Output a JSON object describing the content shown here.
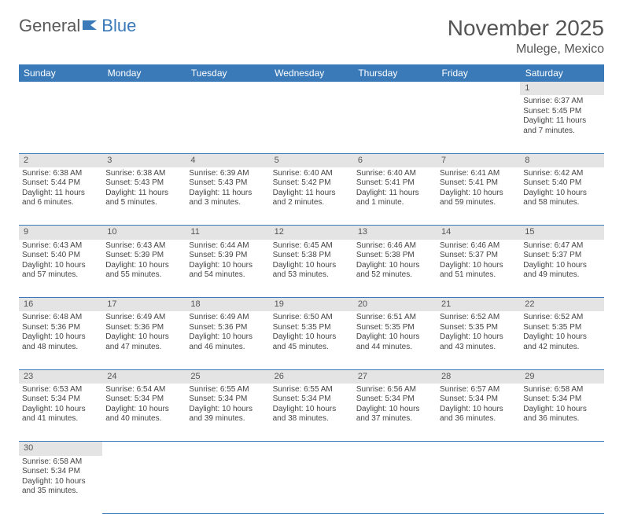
{
  "logo": {
    "text1": "General",
    "text2": "Blue"
  },
  "title": "November 2025",
  "location": "Mulege, Mexico",
  "colors": {
    "header_bg": "#3b7ab8",
    "header_text": "#ffffff",
    "daynum_bg": "#e4e4e4",
    "text": "#444444",
    "border": "#3b7ab8"
  },
  "weekdays": [
    "Sunday",
    "Monday",
    "Tuesday",
    "Wednesday",
    "Thursday",
    "Friday",
    "Saturday"
  ],
  "weeks": [
    [
      null,
      null,
      null,
      null,
      null,
      null,
      {
        "n": "1",
        "sr": "Sunrise: 6:37 AM",
        "ss": "Sunset: 5:45 PM",
        "dl": "Daylight: 11 hours and 7 minutes."
      }
    ],
    [
      {
        "n": "2",
        "sr": "Sunrise: 6:38 AM",
        "ss": "Sunset: 5:44 PM",
        "dl": "Daylight: 11 hours and 6 minutes."
      },
      {
        "n": "3",
        "sr": "Sunrise: 6:38 AM",
        "ss": "Sunset: 5:43 PM",
        "dl": "Daylight: 11 hours and 5 minutes."
      },
      {
        "n": "4",
        "sr": "Sunrise: 6:39 AM",
        "ss": "Sunset: 5:43 PM",
        "dl": "Daylight: 11 hours and 3 minutes."
      },
      {
        "n": "5",
        "sr": "Sunrise: 6:40 AM",
        "ss": "Sunset: 5:42 PM",
        "dl": "Daylight: 11 hours and 2 minutes."
      },
      {
        "n": "6",
        "sr": "Sunrise: 6:40 AM",
        "ss": "Sunset: 5:41 PM",
        "dl": "Daylight: 11 hours and 1 minute."
      },
      {
        "n": "7",
        "sr": "Sunrise: 6:41 AM",
        "ss": "Sunset: 5:41 PM",
        "dl": "Daylight: 10 hours and 59 minutes."
      },
      {
        "n": "8",
        "sr": "Sunrise: 6:42 AM",
        "ss": "Sunset: 5:40 PM",
        "dl": "Daylight: 10 hours and 58 minutes."
      }
    ],
    [
      {
        "n": "9",
        "sr": "Sunrise: 6:43 AM",
        "ss": "Sunset: 5:40 PM",
        "dl": "Daylight: 10 hours and 57 minutes."
      },
      {
        "n": "10",
        "sr": "Sunrise: 6:43 AM",
        "ss": "Sunset: 5:39 PM",
        "dl": "Daylight: 10 hours and 55 minutes."
      },
      {
        "n": "11",
        "sr": "Sunrise: 6:44 AM",
        "ss": "Sunset: 5:39 PM",
        "dl": "Daylight: 10 hours and 54 minutes."
      },
      {
        "n": "12",
        "sr": "Sunrise: 6:45 AM",
        "ss": "Sunset: 5:38 PM",
        "dl": "Daylight: 10 hours and 53 minutes."
      },
      {
        "n": "13",
        "sr": "Sunrise: 6:46 AM",
        "ss": "Sunset: 5:38 PM",
        "dl": "Daylight: 10 hours and 52 minutes."
      },
      {
        "n": "14",
        "sr": "Sunrise: 6:46 AM",
        "ss": "Sunset: 5:37 PM",
        "dl": "Daylight: 10 hours and 51 minutes."
      },
      {
        "n": "15",
        "sr": "Sunrise: 6:47 AM",
        "ss": "Sunset: 5:37 PM",
        "dl": "Daylight: 10 hours and 49 minutes."
      }
    ],
    [
      {
        "n": "16",
        "sr": "Sunrise: 6:48 AM",
        "ss": "Sunset: 5:36 PM",
        "dl": "Daylight: 10 hours and 48 minutes."
      },
      {
        "n": "17",
        "sr": "Sunrise: 6:49 AM",
        "ss": "Sunset: 5:36 PM",
        "dl": "Daylight: 10 hours and 47 minutes."
      },
      {
        "n": "18",
        "sr": "Sunrise: 6:49 AM",
        "ss": "Sunset: 5:36 PM",
        "dl": "Daylight: 10 hours and 46 minutes."
      },
      {
        "n": "19",
        "sr": "Sunrise: 6:50 AM",
        "ss": "Sunset: 5:35 PM",
        "dl": "Daylight: 10 hours and 45 minutes."
      },
      {
        "n": "20",
        "sr": "Sunrise: 6:51 AM",
        "ss": "Sunset: 5:35 PM",
        "dl": "Daylight: 10 hours and 44 minutes."
      },
      {
        "n": "21",
        "sr": "Sunrise: 6:52 AM",
        "ss": "Sunset: 5:35 PM",
        "dl": "Daylight: 10 hours and 43 minutes."
      },
      {
        "n": "22",
        "sr": "Sunrise: 6:52 AM",
        "ss": "Sunset: 5:35 PM",
        "dl": "Daylight: 10 hours and 42 minutes."
      }
    ],
    [
      {
        "n": "23",
        "sr": "Sunrise: 6:53 AM",
        "ss": "Sunset: 5:34 PM",
        "dl": "Daylight: 10 hours and 41 minutes."
      },
      {
        "n": "24",
        "sr": "Sunrise: 6:54 AM",
        "ss": "Sunset: 5:34 PM",
        "dl": "Daylight: 10 hours and 40 minutes."
      },
      {
        "n": "25",
        "sr": "Sunrise: 6:55 AM",
        "ss": "Sunset: 5:34 PM",
        "dl": "Daylight: 10 hours and 39 minutes."
      },
      {
        "n": "26",
        "sr": "Sunrise: 6:55 AM",
        "ss": "Sunset: 5:34 PM",
        "dl": "Daylight: 10 hours and 38 minutes."
      },
      {
        "n": "27",
        "sr": "Sunrise: 6:56 AM",
        "ss": "Sunset: 5:34 PM",
        "dl": "Daylight: 10 hours and 37 minutes."
      },
      {
        "n": "28",
        "sr": "Sunrise: 6:57 AM",
        "ss": "Sunset: 5:34 PM",
        "dl": "Daylight: 10 hours and 36 minutes."
      },
      {
        "n": "29",
        "sr": "Sunrise: 6:58 AM",
        "ss": "Sunset: 5:34 PM",
        "dl": "Daylight: 10 hours and 36 minutes."
      }
    ],
    [
      {
        "n": "30",
        "sr": "Sunrise: 6:58 AM",
        "ss": "Sunset: 5:34 PM",
        "dl": "Daylight: 10 hours and 35 minutes."
      },
      null,
      null,
      null,
      null,
      null,
      null
    ]
  ]
}
